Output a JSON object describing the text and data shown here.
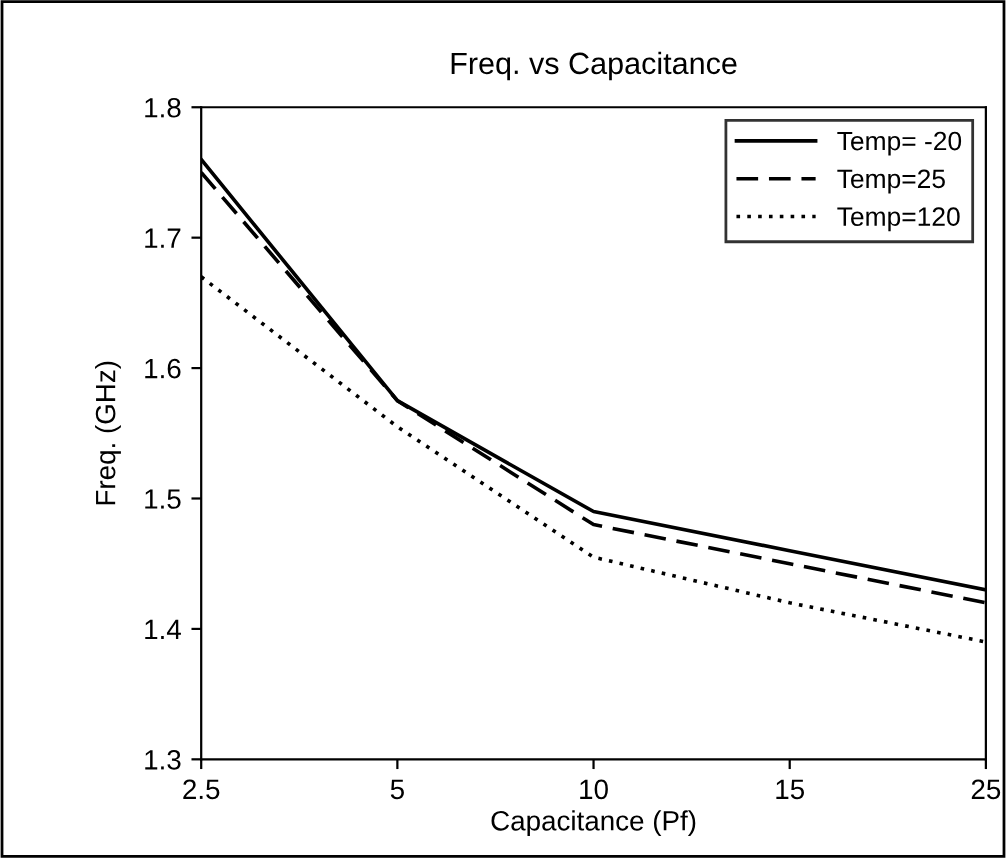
{
  "chart_data": {
    "type": "line",
    "title": "Freq. vs Capacitance",
    "xlabel": "Capacitance (Pf)",
    "ylabel": "Freq. (GHz)",
    "categories": [
      "2.5",
      "5",
      "10",
      "15",
      "25"
    ],
    "series": [
      {
        "name": "Temp= -20",
        "color": "#000000",
        "line_style": "solid",
        "values": [
          1.76,
          1.575,
          1.49,
          1.46,
          1.43
        ]
      },
      {
        "name": "Temp=25",
        "color": "#000000",
        "line_style": "dashed",
        "values": [
          1.75,
          1.575,
          1.48,
          1.45,
          1.42
        ]
      },
      {
        "name": "Temp=120",
        "color": "#000000",
        "line_style": "dotted",
        "values": [
          1.67,
          1.555,
          1.455,
          1.42,
          1.39
        ]
      }
    ],
    "ylim": [
      1.3,
      1.8
    ],
    "yticks": [
      1.3,
      1.4,
      1.5,
      1.6,
      1.7,
      1.8
    ],
    "grid": false,
    "legend": "top right"
  }
}
